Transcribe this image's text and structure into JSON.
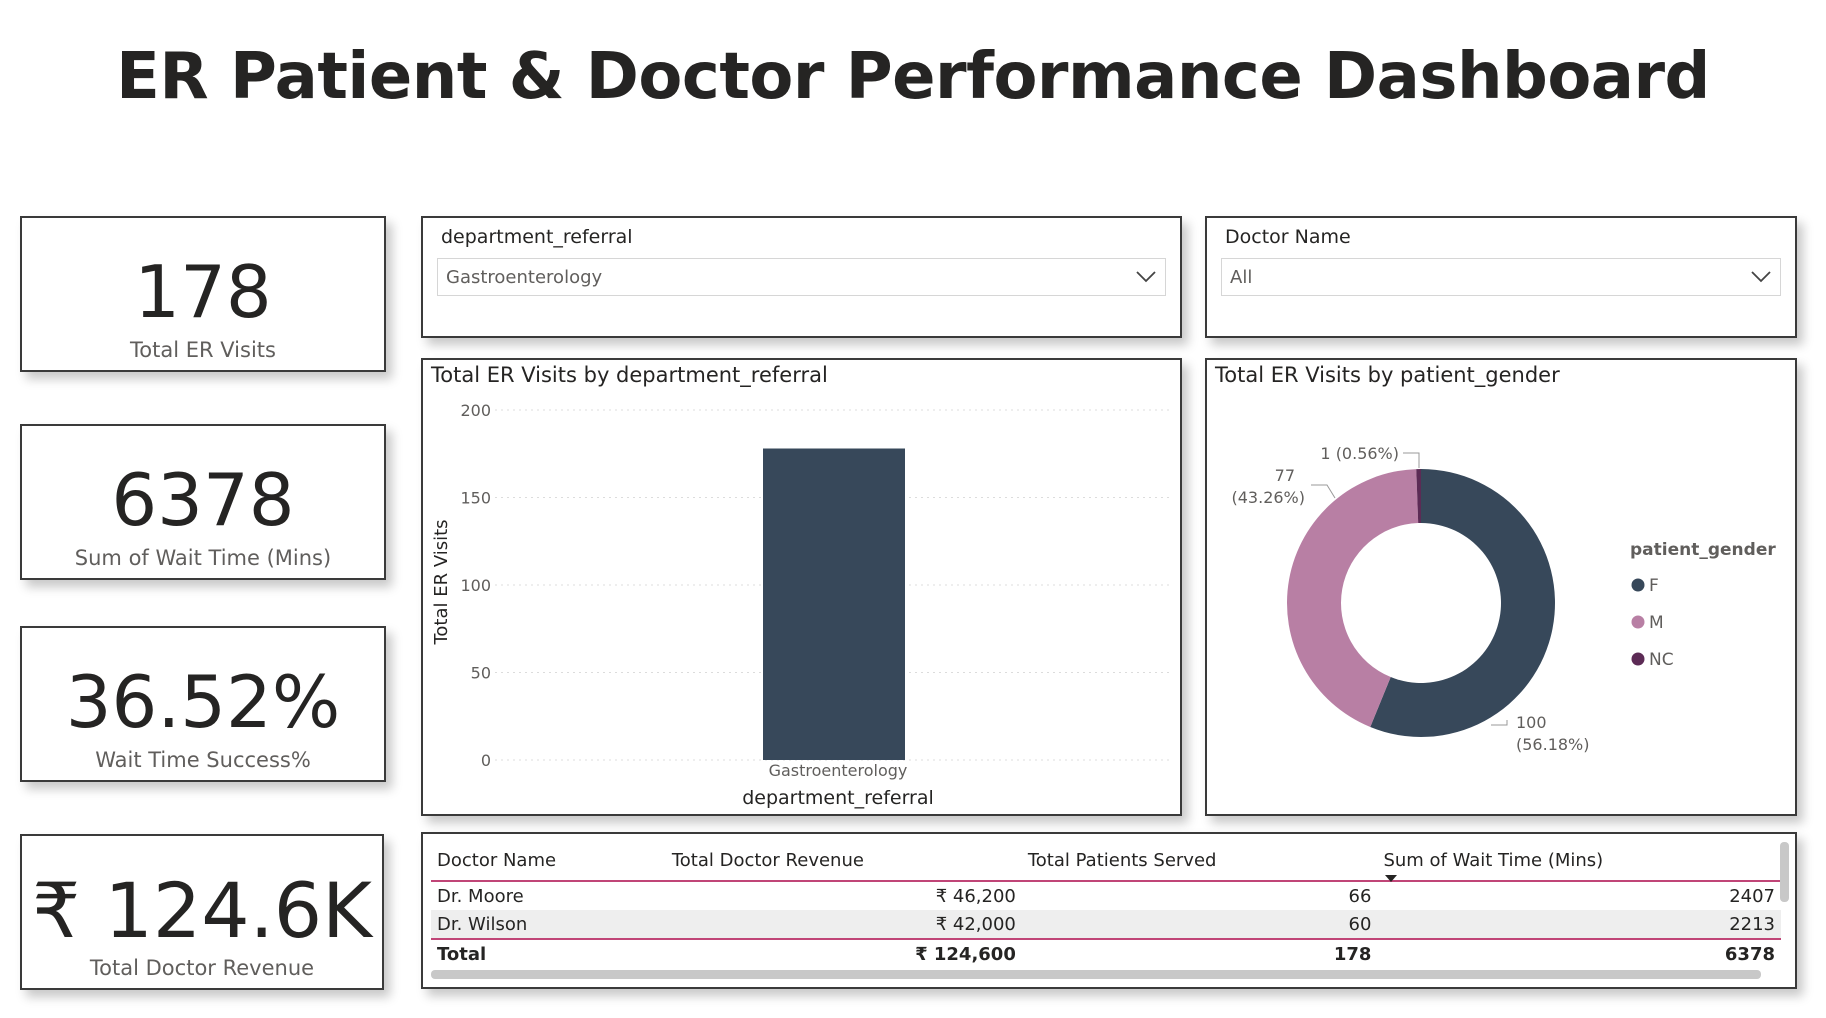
{
  "dashboard_title": "ER Patient & Doctor Performance Dashboard",
  "kpis": [
    {
      "value": "178",
      "label": "Total ER Visits"
    },
    {
      "value": "6378",
      "label": "Sum of Wait Time (Mins)"
    },
    {
      "value": "36.52%",
      "label": "Wait Time Success%"
    },
    {
      "value": "₹ 124.6K",
      "label": "Total Doctor Revenue"
    }
  ],
  "slicers": {
    "department": {
      "title": "department_referral",
      "selected": "Gastroenterology"
    },
    "doctor": {
      "title": "Doctor Name",
      "selected": "All"
    }
  },
  "bar_chart": {
    "title": "Total ER Visits by department_referral",
    "xlabel": "department_referral",
    "ylabel": "Total ER Visits",
    "yticks": [
      "200",
      "150",
      "100",
      "50",
      "0"
    ]
  },
  "donut_chart": {
    "title": "Total ER Visits by patient_gender",
    "legend_title": "patient_gender",
    "labels": {
      "NC": "1 (0.56%)",
      "M_count": "77",
      "M_pct": "(43.26%)",
      "F_count": "100",
      "F_pct": "(56.18%)"
    }
  },
  "chart_data": [
    {
      "type": "bar",
      "title": "Total ER Visits by department_referral",
      "xlabel": "department_referral",
      "ylabel": "Total ER Visits",
      "categories": [
        "Gastroenterology"
      ],
      "values": [
        178
      ],
      "ylim": [
        0,
        200
      ],
      "grid": true,
      "color": "#37485a"
    },
    {
      "type": "pie",
      "title": "Total ER Visits by patient_gender",
      "legend_title": "patient_gender",
      "legend_position": "right",
      "categories": [
        "F",
        "M",
        "NC"
      ],
      "values": [
        100,
        77,
        1
      ],
      "percentages": [
        56.18,
        43.26,
        0.56
      ],
      "colors": [
        "#37485a",
        "#b87fa4",
        "#5c2b55"
      ]
    }
  ],
  "table": {
    "headers": [
      "Doctor Name",
      "Total Doctor Revenue",
      "Total Patients Served",
      "Sum of Wait Time (Mins)"
    ],
    "rows": [
      [
        "Dr. Moore",
        "₹ 46,200",
        "66",
        "2407"
      ],
      [
        "Dr. Wilson",
        "₹ 42,000",
        "60",
        "2213"
      ]
    ],
    "total": [
      "Total",
      "₹ 124,600",
      "178",
      "6378"
    ]
  },
  "colors": {
    "primary": "#37485a",
    "secondary": "#b87fa4",
    "tertiary": "#5c2b55",
    "accent_line": "#c04577"
  }
}
